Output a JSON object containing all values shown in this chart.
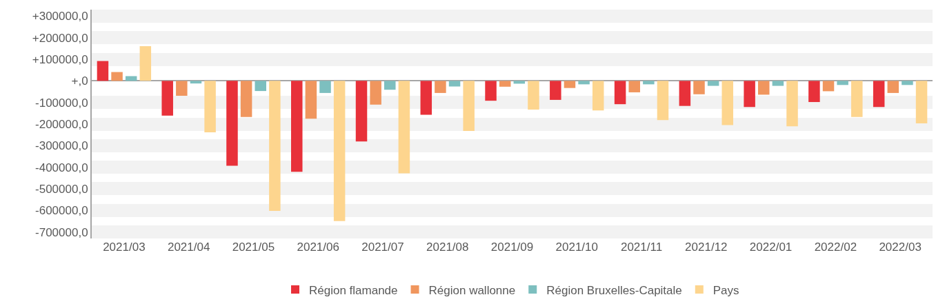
{
  "chart_data": {
    "type": "bar",
    "categories": [
      "2021/03",
      "2021/04",
      "2021/05",
      "2021/06",
      "2021/07",
      "2021/08",
      "2021/09",
      "2021/10",
      "2021/11",
      "2021/12",
      "2022/01",
      "2022/02",
      "2022/03"
    ],
    "series": [
      {
        "name": "Région flamande",
        "color": "#e8313a",
        "values": [
          92000,
          -161000,
          -393000,
          -421000,
          -281000,
          -157000,
          -92000,
          -88000,
          -108000,
          -116000,
          -121000,
          -98000,
          -121000
        ]
      },
      {
        "name": "Région wallonne",
        "color": "#f0965e",
        "values": [
          41000,
          -69000,
          -167000,
          -175000,
          -110000,
          -56000,
          -27000,
          -33000,
          -53000,
          -62000,
          -64000,
          -48000,
          -56000
        ]
      },
      {
        "name": "Région Bruxelles-Capitale",
        "color": "#7dbfbf",
        "values": [
          22000,
          -12000,
          -47000,
          -56000,
          -41000,
          -26000,
          -13000,
          -16000,
          -16000,
          -23000,
          -23000,
          -19000,
          -19000
        ]
      },
      {
        "name": "Pays",
        "color": "#fdd58e",
        "values": [
          161000,
          -238000,
          -602000,
          -649000,
          -428000,
          -232000,
          -133000,
          -137000,
          -182000,
          -205000,
          -210000,
          -167000,
          -197000
        ]
      }
    ],
    "ylim": [
      -730000,
      330000
    ],
    "yticks": [
      {
        "value": 300000,
        "label": "+300000,0"
      },
      {
        "value": 200000,
        "label": "+200000,0"
      },
      {
        "value": 100000,
        "label": "+100000,0"
      },
      {
        "value": 0,
        "label": "+,0"
      },
      {
        "value": -100000,
        "label": "-100000,0"
      },
      {
        "value": -200000,
        "label": "-200000,0"
      },
      {
        "value": -300000,
        "label": "-300000,0"
      },
      {
        "value": -400000,
        "label": "-400000,0"
      },
      {
        "value": -500000,
        "label": "-500000,0"
      },
      {
        "value": -600000,
        "label": "-600000,0"
      },
      {
        "value": -700000,
        "label": "-700000,0"
      }
    ],
    "grid": "y",
    "legend": "bottom"
  }
}
